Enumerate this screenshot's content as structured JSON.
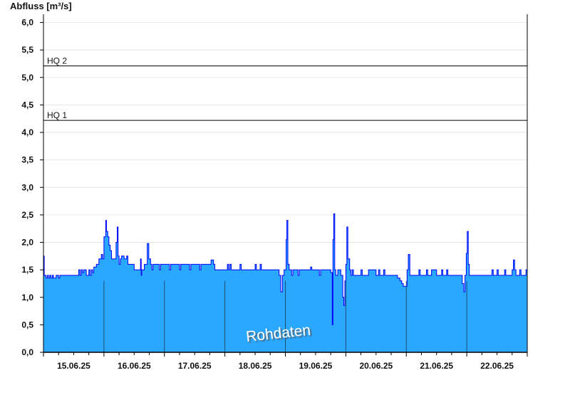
{
  "chart_data": {
    "type": "area",
    "ylabel": "Abfluss [m³/s]",
    "ylim": [
      0,
      6.15
    ],
    "yticks": [
      "0,0",
      "0,5",
      "1,0",
      "1,5",
      "2,0",
      "2,5",
      "3,0",
      "3,5",
      "4,0",
      "4,5",
      "5,0",
      "5,5",
      "6,0"
    ],
    "ytick_values": [
      0,
      0.5,
      1,
      1.5,
      2,
      2.5,
      3,
      3.5,
      4,
      4.5,
      5,
      5.5,
      6
    ],
    "x_start": "15.06.25 00:00",
    "x_end": "23.06.25 00:00",
    "xticks": [
      "15.06.25",
      "16.06.25",
      "17.06.25",
      "18.06.25",
      "19.06.25",
      "20.06.25",
      "21.06.25",
      "22.06.25"
    ],
    "grid": true,
    "thresholds": [
      {
        "label": "HQ 1",
        "value": 4.22
      },
      {
        "label": "HQ 2",
        "value": 5.21
      }
    ],
    "watermark": "Rohdaten",
    "colors": {
      "fill": "#2aa8ff",
      "line": "#0000ff",
      "threshold": "#000000",
      "grid": "#e6e6e6"
    },
    "x_unit": "hours since 15.06.25 00:00",
    "series": [
      [
        0,
        1.75
      ],
      [
        0.3,
        1.4
      ],
      [
        1,
        1.35
      ],
      [
        1.5,
        1.4
      ],
      [
        2,
        1.35
      ],
      [
        2.5,
        1.4
      ],
      [
        3,
        1.35
      ],
      [
        3.5,
        1.4
      ],
      [
        4,
        1.35
      ],
      [
        5,
        1.4
      ],
      [
        6,
        1.35
      ],
      [
        6.5,
        1.4
      ],
      [
        8,
        1.4
      ],
      [
        12,
        1.4
      ],
      [
        14,
        1.5
      ],
      [
        14.5,
        1.4
      ],
      [
        15,
        1.5
      ],
      [
        15.5,
        1.45
      ],
      [
        16,
        1.5
      ],
      [
        17,
        1.4
      ],
      [
        18,
        1.5
      ],
      [
        18.5,
        1.4
      ],
      [
        19,
        1.5
      ],
      [
        19.5,
        1.45
      ],
      [
        20,
        1.55
      ],
      [
        21,
        1.6
      ],
      [
        22,
        1.7
      ],
      [
        23,
        1.78
      ],
      [
        23.5,
        1.7
      ],
      [
        24,
        2.1
      ],
      [
        24.7,
        2.4
      ],
      [
        25,
        2.2
      ],
      [
        25.5,
        2.1
      ],
      [
        26,
        1.95
      ],
      [
        26.5,
        1.85
      ],
      [
        27,
        1.7
      ],
      [
        28.8,
        2.0
      ],
      [
        29.3,
        2.28
      ],
      [
        29.6,
        1.75
      ],
      [
        30,
        1.6
      ],
      [
        30.5,
        1.7
      ],
      [
        31,
        1.75
      ],
      [
        32,
        1.7
      ],
      [
        33,
        1.75
      ],
      [
        33.5,
        1.6
      ],
      [
        36,
        1.5
      ],
      [
        38.5,
        1.7
      ],
      [
        38.8,
        1.4
      ],
      [
        39,
        1.5
      ],
      [
        40,
        1.6
      ],
      [
        41.2,
        1.98
      ],
      [
        41.8,
        1.7
      ],
      [
        42.5,
        1.6
      ],
      [
        43,
        1.5
      ],
      [
        43.5,
        1.6
      ],
      [
        46,
        1.5
      ],
      [
        46.5,
        1.6
      ],
      [
        50,
        1.5
      ],
      [
        50.5,
        1.6
      ],
      [
        54,
        1.5
      ],
      [
        54.5,
        1.6
      ],
      [
        58,
        1.5
      ],
      [
        58.5,
        1.6
      ],
      [
        62,
        1.5
      ],
      [
        62.5,
        1.6
      ],
      [
        66.5,
        1.68
      ],
      [
        67.5,
        1.6
      ],
      [
        68,
        1.5
      ],
      [
        72,
        1.5
      ],
      [
        73,
        1.6
      ],
      [
        73.5,
        1.5
      ],
      [
        74,
        1.6
      ],
      [
        74.5,
        1.5
      ],
      [
        78,
        1.6
      ],
      [
        78.5,
        1.5
      ],
      [
        84,
        1.6
      ],
      [
        84.5,
        1.5
      ],
      [
        86,
        1.6
      ],
      [
        86.5,
        1.5
      ],
      [
        93.5,
        1.4
      ],
      [
        94.2,
        1.1
      ],
      [
        94.8,
        1.4
      ],
      [
        95.5,
        1.5
      ],
      [
        96.3,
        2.05
      ],
      [
        96.6,
        2.4
      ],
      [
        97,
        1.6
      ],
      [
        97.5,
        1.5
      ],
      [
        98.5,
        1.4
      ],
      [
        99,
        1.5
      ],
      [
        101,
        1.4
      ],
      [
        101.5,
        1.5
      ],
      [
        106,
        1.55
      ],
      [
        106.5,
        1.5
      ],
      [
        109.5,
        1.4
      ],
      [
        110,
        1.5
      ],
      [
        114,
        1.45
      ],
      [
        114.6,
        0.5
      ],
      [
        114.9,
        2.05
      ],
      [
        115.2,
        2.52
      ],
      [
        115.6,
        1.5
      ],
      [
        116,
        1.4
      ],
      [
        116.8,
        1.5
      ],
      [
        118,
        1.4
      ],
      [
        118.8,
        1.0
      ],
      [
        119.2,
        0.85
      ],
      [
        119.6,
        1.3
      ],
      [
        120,
        1.6
      ],
      [
        120.4,
        2.28
      ],
      [
        120.8,
        1.7
      ],
      [
        121.5,
        1.5
      ],
      [
        122,
        1.4
      ],
      [
        122.5,
        1.5
      ],
      [
        123,
        1.4
      ],
      [
        126,
        1.5
      ],
      [
        126.5,
        1.4
      ],
      [
        129,
        1.5
      ],
      [
        132,
        1.4
      ],
      [
        133,
        1.5
      ],
      [
        133.5,
        1.4
      ],
      [
        135,
        1.5
      ],
      [
        135.5,
        1.4
      ],
      [
        140.5,
        1.35
      ],
      [
        141.5,
        1.3
      ],
      [
        142.2,
        1.25
      ],
      [
        142.8,
        1.2
      ],
      [
        144.3,
        1.5
      ],
      [
        144.8,
        1.78
      ],
      [
        145.4,
        1.4
      ],
      [
        149,
        1.5
      ],
      [
        149.5,
        1.4
      ],
      [
        152,
        1.5
      ],
      [
        152.5,
        1.4
      ],
      [
        154,
        1.5
      ],
      [
        156,
        1.4
      ],
      [
        158,
        1.5
      ],
      [
        158.5,
        1.4
      ],
      [
        160,
        1.5
      ],
      [
        160.5,
        1.4
      ],
      [
        166.2,
        1.25
      ],
      [
        166.8,
        1.1
      ],
      [
        167.3,
        1.4
      ],
      [
        167.8,
        1.8
      ],
      [
        168.2,
        2.2
      ],
      [
        168.6,
        1.6
      ],
      [
        169,
        1.4
      ],
      [
        178,
        1.5
      ],
      [
        178.5,
        1.4
      ],
      [
        180,
        1.5
      ],
      [
        180.5,
        1.4
      ],
      [
        183,
        1.5
      ],
      [
        183.5,
        1.4
      ],
      [
        186,
        1.5
      ],
      [
        186.5,
        1.68
      ],
      [
        187,
        1.5
      ],
      [
        187.5,
        1.4
      ],
      [
        189,
        1.5
      ],
      [
        189.5,
        1.4
      ],
      [
        191.5,
        1.5
      ],
      [
        192,
        1.4
      ]
    ]
  }
}
